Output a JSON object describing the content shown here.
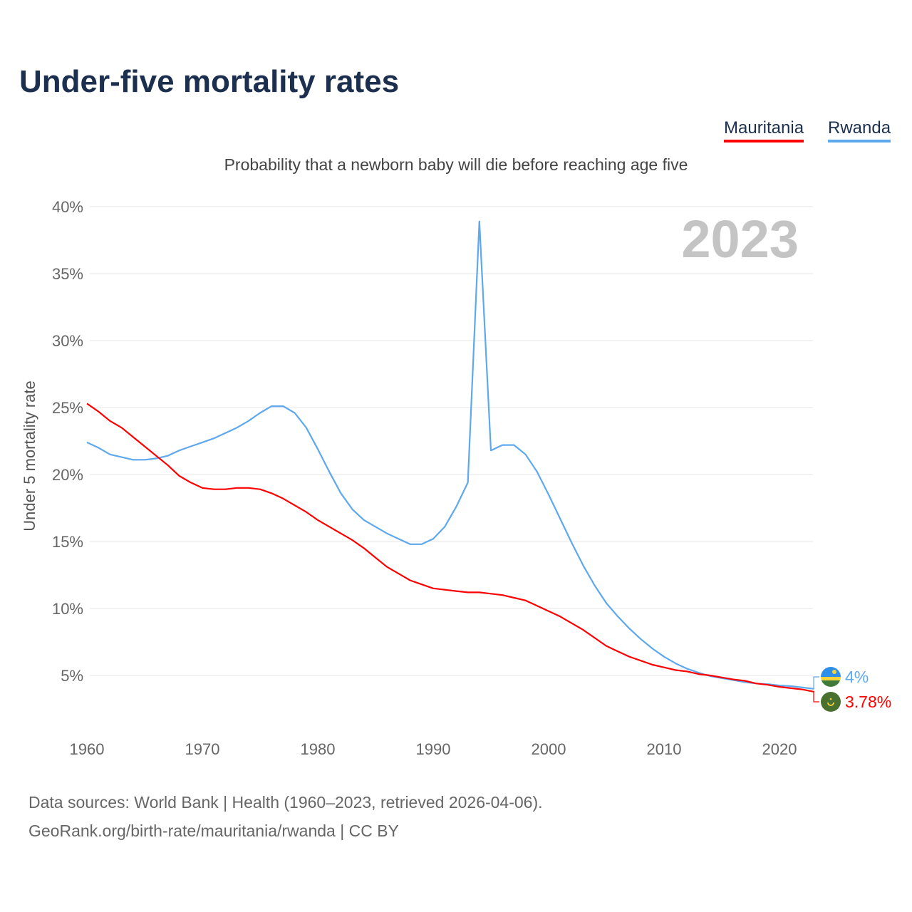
{
  "title": "Under-five mortality rates",
  "legend": {
    "mauritania": "Mauritania",
    "rwanda": "Rwanda"
  },
  "source": {
    "line1": "Data sources: World Bank | Health (1960–2023, retrieved 2026-04-06).",
    "line2": "GeoRank.org/birth-rate/mauritania/rwanda | CC BY"
  },
  "chart_data": {
    "type": "line",
    "title": "Under-five mortality rates",
    "subtitle": "Probability that a newborn baby will die before reaching age five",
    "ylabel": "Under 5 mortality rate",
    "xlabel": "",
    "year_label": "2023",
    "ylim": [
      0,
      40
    ],
    "xlim": [
      1960,
      2023
    ],
    "yticks": [
      5,
      10,
      15,
      20,
      25,
      30,
      35,
      40
    ],
    "ytick_labels": [
      "5%",
      "10%",
      "15%",
      "20%",
      "25%",
      "30%",
      "35%",
      "40%"
    ],
    "xticks": [
      1960,
      1970,
      1980,
      1990,
      2000,
      2010,
      2020
    ],
    "xtick_labels": [
      "1960",
      "1970",
      "1980",
      "1990",
      "2000",
      "2010",
      "2020"
    ],
    "grid": true,
    "legend_position": "top-right",
    "series": [
      {
        "name": "Mauritania",
        "color": "#ff0000",
        "end_label": "3.78%",
        "flag": "mauritania-flag",
        "values": [
          25.3,
          24.7,
          24.0,
          23.5,
          22.8,
          22.1,
          21.4,
          20.7,
          19.9,
          19.4,
          19.0,
          18.9,
          18.9,
          19.0,
          19.0,
          18.9,
          18.6,
          18.2,
          17.7,
          17.2,
          16.6,
          16.1,
          15.6,
          15.1,
          14.5,
          13.8,
          13.1,
          12.6,
          12.1,
          11.8,
          11.5,
          11.4,
          11.3,
          11.2,
          11.2,
          11.1,
          11.0,
          10.8,
          10.6,
          10.2,
          9.8,
          9.4,
          8.9,
          8.4,
          7.8,
          7.2,
          6.8,
          6.4,
          6.1,
          5.8,
          5.6,
          5.4,
          5.3,
          5.1,
          5.0,
          4.85,
          4.7,
          4.6,
          4.4,
          4.3,
          4.15,
          4.05,
          3.95,
          3.78
        ]
      },
      {
        "name": "Rwanda",
        "color": "#5ea8ee",
        "end_label": "4%",
        "flag": "rwanda-flag",
        "values": [
          22.4,
          22.0,
          21.5,
          21.3,
          21.1,
          21.1,
          21.2,
          21.4,
          21.8,
          22.1,
          22.4,
          22.7,
          23.1,
          23.5,
          24.0,
          24.6,
          25.1,
          25.1,
          24.6,
          23.5,
          21.9,
          20.2,
          18.6,
          17.4,
          16.6,
          16.1,
          15.6,
          15.2,
          14.8,
          14.8,
          15.2,
          16.1,
          17.6,
          19.4,
          38.9,
          21.8,
          22.2,
          22.2,
          21.5,
          20.2,
          18.5,
          16.7,
          14.9,
          13.2,
          11.7,
          10.4,
          9.4,
          8.5,
          7.7,
          7.0,
          6.4,
          5.9,
          5.5,
          5.2,
          4.95,
          4.8,
          4.65,
          4.5,
          4.4,
          4.35,
          4.25,
          4.2,
          4.1,
          4.0
        ]
      }
    ]
  }
}
